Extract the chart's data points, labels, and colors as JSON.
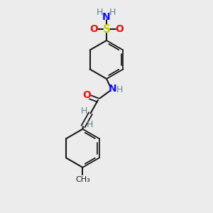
{
  "background_color": "#ececec",
  "bond_color": "#1a1a1a",
  "N_color": "#1010ee",
  "O_color": "#ee1010",
  "S_color": "#cccc00",
  "H_color": "#5f8090",
  "figsize": [
    3.0,
    3.0
  ],
  "dpi": 100,
  "xlim": [
    0,
    10
  ],
  "ylim": [
    0,
    10
  ]
}
